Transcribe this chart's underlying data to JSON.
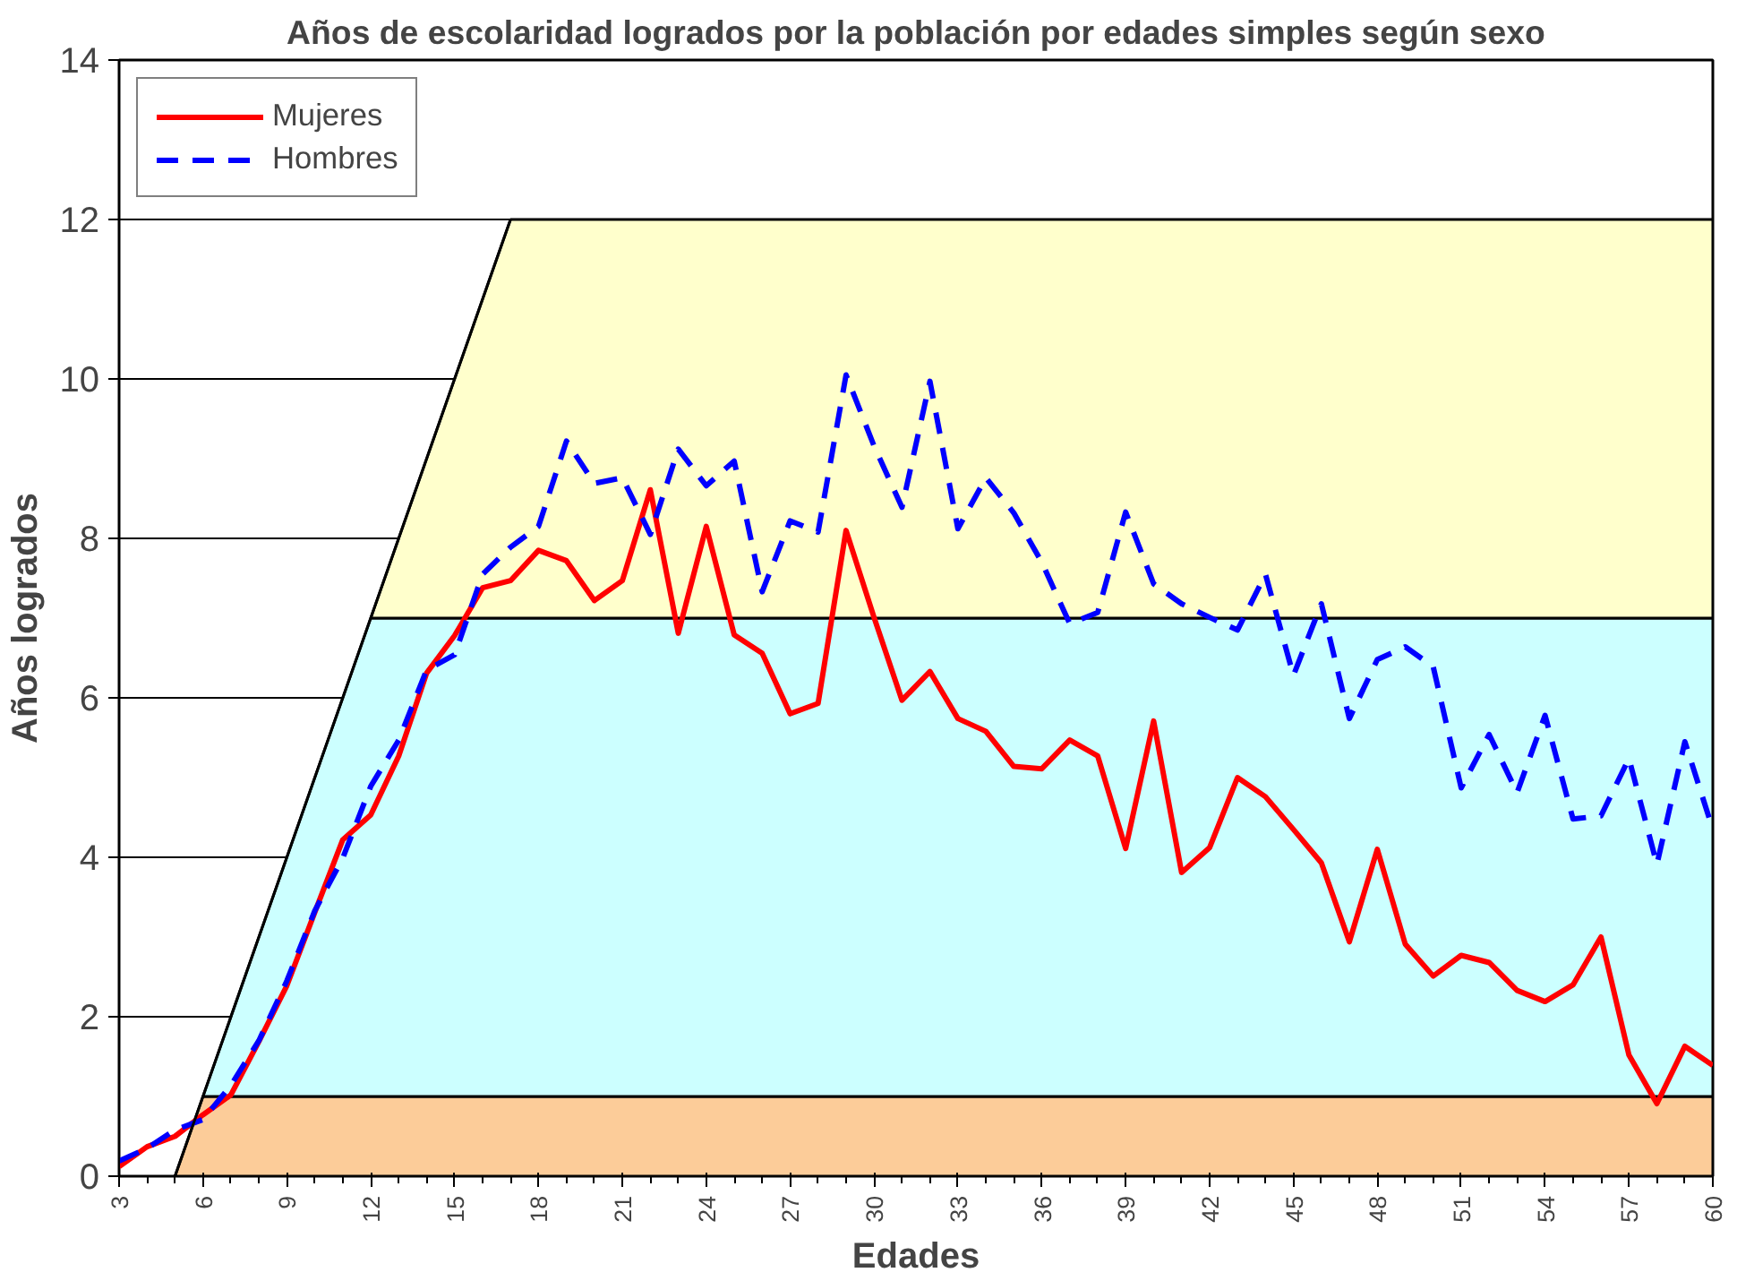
{
  "chart_data": {
    "type": "line",
    "title": "Años de escolaridad logrados por la población por edades simples según sexo",
    "xlabel": "Edades",
    "ylabel": "Años logrados",
    "x": [
      3,
      4,
      5,
      6,
      7,
      8,
      9,
      10,
      11,
      12,
      13,
      14,
      15,
      16,
      17,
      18,
      19,
      20,
      21,
      22,
      23,
      24,
      25,
      26,
      27,
      28,
      29,
      30,
      31,
      32,
      33,
      34,
      35,
      36,
      37,
      38,
      39,
      40,
      41,
      42,
      43,
      44,
      45,
      46,
      47,
      48,
      49,
      50,
      51,
      52,
      53,
      54,
      55,
      56,
      57,
      58,
      59,
      60
    ],
    "xlim": [
      3,
      60
    ],
    "xticks": [
      3,
      6,
      9,
      12,
      15,
      18,
      21,
      24,
      27,
      30,
      33,
      36,
      39,
      42,
      45,
      48,
      51,
      54,
      57,
      60
    ],
    "ylim": [
      0,
      14
    ],
    "yticks": [
      0,
      2,
      4,
      6,
      8,
      10,
      12,
      14
    ],
    "grid": "y",
    "legend": "top left",
    "series": [
      {
        "name": "Mujeres",
        "color": "#ff0000",
        "line_style": "solid",
        "values": [
          0.12,
          0.37,
          0.5,
          0.77,
          1.02,
          1.69,
          2.39,
          3.31,
          4.22,
          4.53,
          5.27,
          6.31,
          6.78,
          7.38,
          7.47,
          7.85,
          7.72,
          7.22,
          7.47,
          8.61,
          6.81,
          8.15,
          6.79,
          6.56,
          5.8,
          5.93,
          8.1,
          7.01,
          5.97,
          6.33,
          5.74,
          5.58,
          5.14,
          5.11,
          5.47,
          5.27,
          4.11,
          5.71,
          3.81,
          4.12,
          5.0,
          4.76,
          4.35,
          3.93,
          2.94,
          4.1,
          2.91,
          2.51,
          2.77,
          2.68,
          2.33,
          2.19,
          2.4,
          3.0,
          1.52,
          0.91,
          1.63,
          1.39
        ]
      },
      {
        "name": "Hombres",
        "color": "#0000ff",
        "line_style": "dashed",
        "values": [
          0.19,
          0.35,
          0.58,
          0.71,
          1.14,
          1.7,
          2.45,
          3.33,
          3.99,
          4.89,
          5.47,
          6.35,
          6.54,
          7.55,
          7.89,
          8.15,
          9.22,
          8.69,
          8.76,
          8.05,
          9.12,
          8.66,
          8.97,
          7.33,
          8.22,
          8.08,
          10.05,
          9.16,
          8.39,
          9.97,
          8.12,
          8.76,
          8.32,
          7.7,
          6.93,
          7.07,
          8.33,
          7.43,
          7.18,
          7.01,
          6.85,
          7.55,
          6.28,
          7.18,
          5.74,
          6.48,
          6.64,
          6.39,
          4.87,
          5.54,
          4.81,
          5.78,
          4.48,
          4.52,
          5.24,
          3.91,
          5.45,
          4.35
        ]
      },
      {
        "color": "#000000",
        "line_style": "solid",
        "x": [
          5,
          17
        ],
        "values": [
          0,
          12
        ]
      }
    ],
    "bands": [
      {
        "axis": "y",
        "from": 0,
        "to": 1,
        "color": "#fccc99"
      },
      {
        "axis": "y",
        "from": 1,
        "to": 7,
        "color": "#ccffff"
      },
      {
        "axis": "y",
        "from": 7,
        "to": 12,
        "color": "#ffffcc"
      }
    ]
  }
}
